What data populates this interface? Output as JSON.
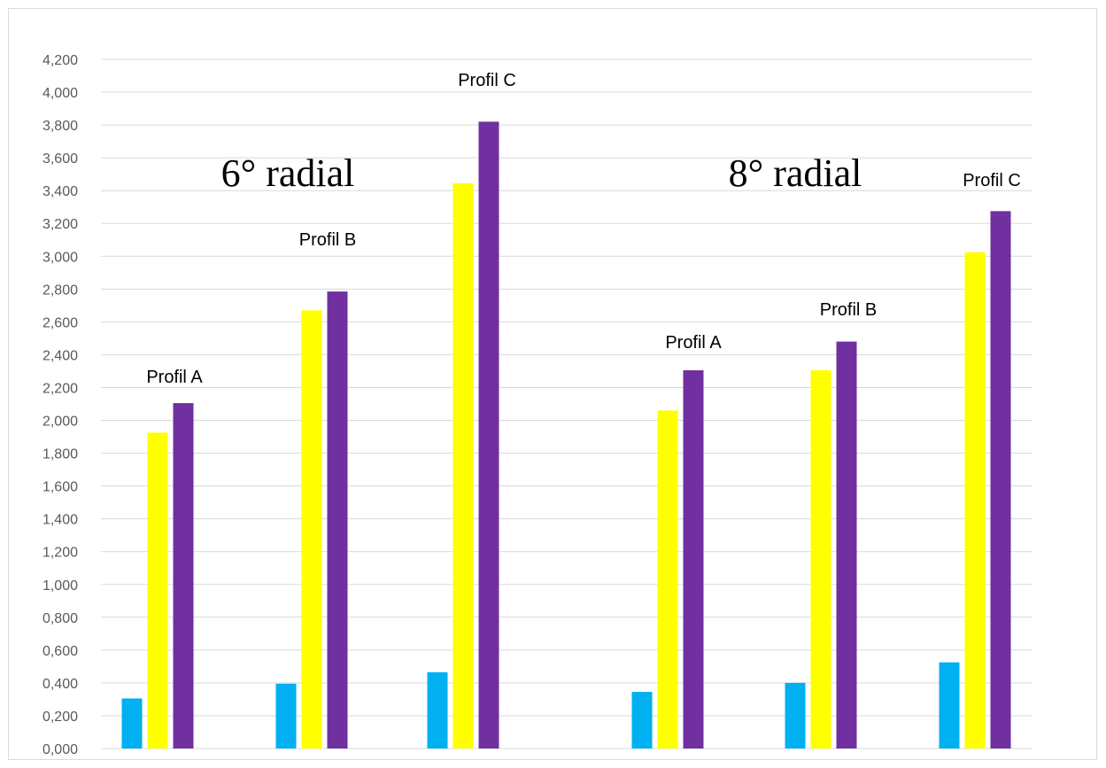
{
  "chart_data": {
    "type": "bar",
    "groups": [
      "6° radial",
      "8° radial"
    ],
    "categories": [
      "Profil A",
      "Profil B",
      "Profil C",
      "Profil A",
      "Profil B",
      "Profil C"
    ],
    "series": [
      {
        "color": "#00b0f0",
        "values": [
          0.305,
          0.395,
          0.465,
          0.345,
          0.4,
          0.525
        ]
      },
      {
        "color": "#ffff00",
        "values": [
          1.925,
          2.67,
          3.445,
          2.06,
          2.305,
          3.025
        ]
      },
      {
        "color": "#7030a0",
        "values": [
          2.105,
          2.785,
          3.82,
          2.305,
          2.48,
          3.275
        ]
      }
    ],
    "ylim": [
      0,
      4.2
    ],
    "yticks": [
      "0,000",
      "0,200",
      "0,400",
      "0,600",
      "0,800",
      "1,000",
      "1,200",
      "1,400",
      "1,600",
      "1,800",
      "2,000",
      "2,200",
      "2,400",
      "2,600",
      "2,800",
      "3,000",
      "3,200",
      "3,400",
      "3,600",
      "3,800",
      "4,000",
      "4,200"
    ],
    "grid": true,
    "legend": "none"
  }
}
